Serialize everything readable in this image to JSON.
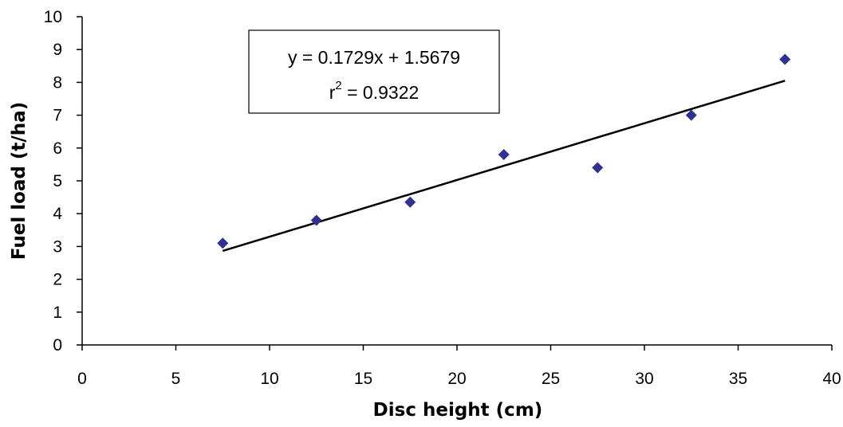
{
  "chart_data": {
    "type": "scatter",
    "xlabel": "Disc height (cm)",
    "ylabel": "Fuel load (t/ha)",
    "xlim": [
      0,
      40
    ],
    "ylim": [
      0,
      10
    ],
    "x_ticks": [
      0,
      5,
      10,
      15,
      20,
      25,
      30,
      35,
      40
    ],
    "y_ticks": [
      0,
      1,
      2,
      3,
      4,
      5,
      6,
      7,
      8,
      9,
      10
    ],
    "grid": false,
    "marker": "diamond",
    "colors": {
      "points": "#2e3192",
      "trendline": "#000000"
    },
    "points": [
      {
        "x": 7.5,
        "y": 3.1
      },
      {
        "x": 12.5,
        "y": 3.8
      },
      {
        "x": 17.5,
        "y": 4.35
      },
      {
        "x": 22.5,
        "y": 5.8
      },
      {
        "x": 27.5,
        "y": 5.4
      },
      {
        "x": 32.5,
        "y": 7.0
      },
      {
        "x": 37.5,
        "y": 8.7
      }
    ],
    "trendline": {
      "slope": 0.1729,
      "intercept": 1.5679,
      "x_start": 7.5,
      "x_end": 37.5
    },
    "annotation": {
      "equation_left": "y = 0.1729x + 1.5679",
      "r_label": "r",
      "r_exponent": "2",
      "r_value": " = 0.9322"
    }
  }
}
